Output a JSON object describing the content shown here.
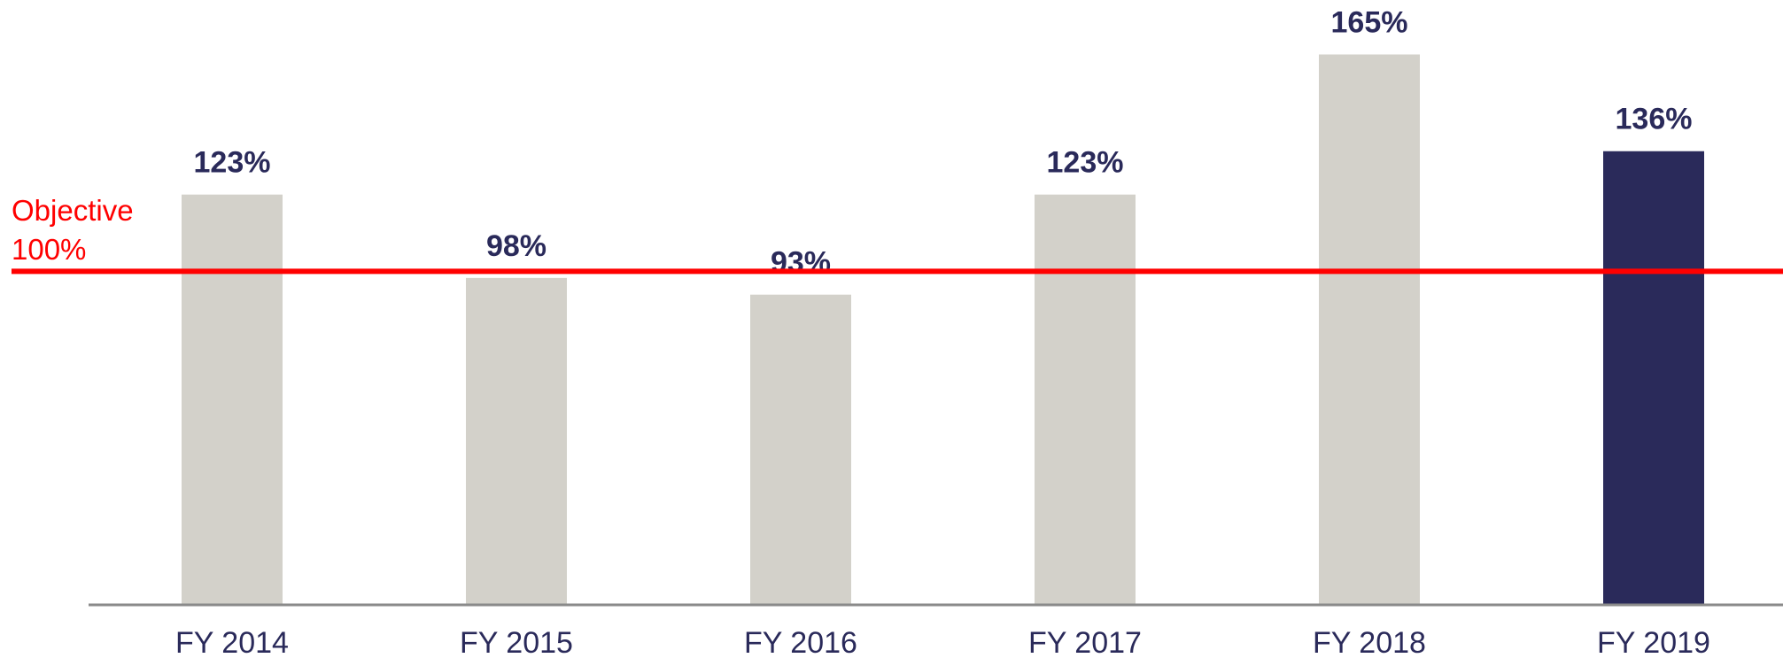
{
  "chart_data": {
    "type": "bar",
    "categories": [
      "FY 2014",
      "FY 2015",
      "FY 2016",
      "FY 2017",
      "FY 2018",
      "FY 2019"
    ],
    "values": [
      123,
      98,
      93,
      123,
      165,
      136
    ],
    "value_labels": [
      "123%",
      "98%",
      "93%",
      "123%",
      "165%",
      "136%"
    ],
    "colors": [
      "#d3d1ca",
      "#d3d1ca",
      "#d3d1ca",
      "#d3d1ca",
      "#d3d1ca",
      "#2a2a5a"
    ],
    "ylim": [
      0,
      180
    ],
    "reference_line": {
      "value": 100,
      "label": [
        "Objective",
        "100%"
      ],
      "color": "#ff0000"
    }
  }
}
